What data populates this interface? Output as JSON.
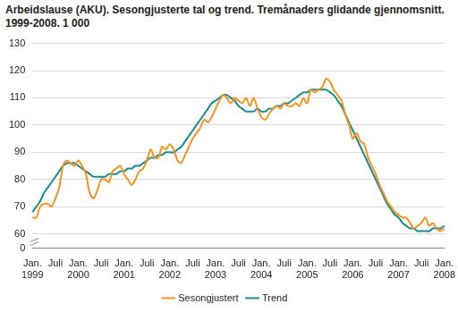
{
  "chart_data": {
    "type": "line",
    "title": "Arbeidslause (AKU). Sesongjusterte tal og trend. Tremånaders glidande gjennomsnitt. 1999-2008. 1 000",
    "categories": [
      "Jan. 1999",
      null,
      null,
      null,
      null,
      null,
      "Juli",
      null,
      null,
      null,
      null,
      null,
      "Jan. 2000",
      null,
      null,
      null,
      null,
      null,
      "Juli",
      null,
      null,
      null,
      null,
      null,
      "Jan. 2001",
      null,
      null,
      null,
      null,
      null,
      "Juli",
      null,
      null,
      null,
      null,
      null,
      "Jan. 2002",
      null,
      null,
      null,
      null,
      null,
      "Juli",
      null,
      null,
      null,
      null,
      null,
      "Jan. 2003",
      null,
      null,
      null,
      null,
      null,
      "Juli",
      null,
      null,
      null,
      null,
      null,
      "Jan. 2004",
      null,
      null,
      null,
      null,
      null,
      "Juli",
      null,
      null,
      null,
      null,
      null,
      "Jan. 2005",
      null,
      null,
      null,
      null,
      null,
      "Juli",
      null,
      null,
      null,
      null,
      null,
      "Jan. 2006",
      null,
      null,
      null,
      null,
      null,
      "Juli",
      null,
      null,
      null,
      null,
      null,
      "Jan. 2007",
      null,
      null,
      null,
      null,
      null,
      "Juli",
      null,
      null,
      null,
      null,
      null,
      "Jan. 2008"
    ],
    "series": [
      {
        "name": "Sesongjustert",
        "color": "#f39320",
        "values": [
          66,
          66,
          70,
          71,
          71,
          70,
          73,
          77,
          85,
          87,
          86,
          85,
          87,
          85,
          82,
          75,
          73,
          76,
          80,
          80,
          79,
          83,
          84,
          85,
          82,
          80,
          78,
          80,
          83,
          84,
          87,
          91,
          88,
          88,
          92,
          91,
          93,
          91,
          87,
          86,
          89,
          92,
          95,
          97,
          99,
          102,
          101,
          103,
          106,
          109,
          111,
          110,
          108,
          110,
          109,
          108,
          110,
          107,
          110,
          106,
          103,
          102,
          104,
          106,
          107,
          106,
          108,
          107,
          107,
          108,
          107,
          110,
          108,
          113,
          112,
          113,
          114,
          117,
          116,
          113,
          111,
          109,
          104,
          100,
          95,
          97,
          94,
          93,
          88,
          85,
          82,
          78,
          75,
          72,
          70,
          68,
          67,
          66,
          66,
          64,
          62,
          63,
          64,
          66,
          63,
          64,
          62,
          61,
          62
        ]
      },
      {
        "name": "Trend",
        "color": "#1a8a8c",
        "values": [
          68,
          70,
          72,
          75,
          77,
          79,
          81,
          83,
          85,
          86,
          86,
          86,
          85,
          84,
          83,
          82,
          81,
          81,
          81,
          81,
          82,
          82,
          82,
          83,
          83,
          84,
          84,
          85,
          85,
          86,
          87,
          88,
          88,
          89,
          89,
          90,
          90,
          90,
          91,
          92,
          94,
          96,
          98,
          100,
          102,
          104,
          106,
          108,
          109,
          110,
          111,
          111,
          110,
          109,
          107,
          106,
          105,
          105,
          105,
          106,
          105,
          105,
          106,
          106,
          107,
          107,
          108,
          108,
          109,
          110,
          111,
          112,
          112,
          113,
          113,
          113,
          113,
          113,
          112,
          111,
          109,
          107,
          104,
          101,
          98,
          95,
          92,
          89,
          86,
          83,
          80,
          77,
          74,
          71,
          69,
          67,
          66,
          64,
          63,
          62,
          62,
          61,
          61,
          61,
          61,
          62,
          62,
          62,
          63
        ]
      }
    ],
    "ylim": [
      0,
      130
    ],
    "yticks": [
      0,
      60,
      70,
      80,
      90,
      100,
      110,
      120,
      130
    ],
    "grid": true,
    "legend": "bottom"
  }
}
